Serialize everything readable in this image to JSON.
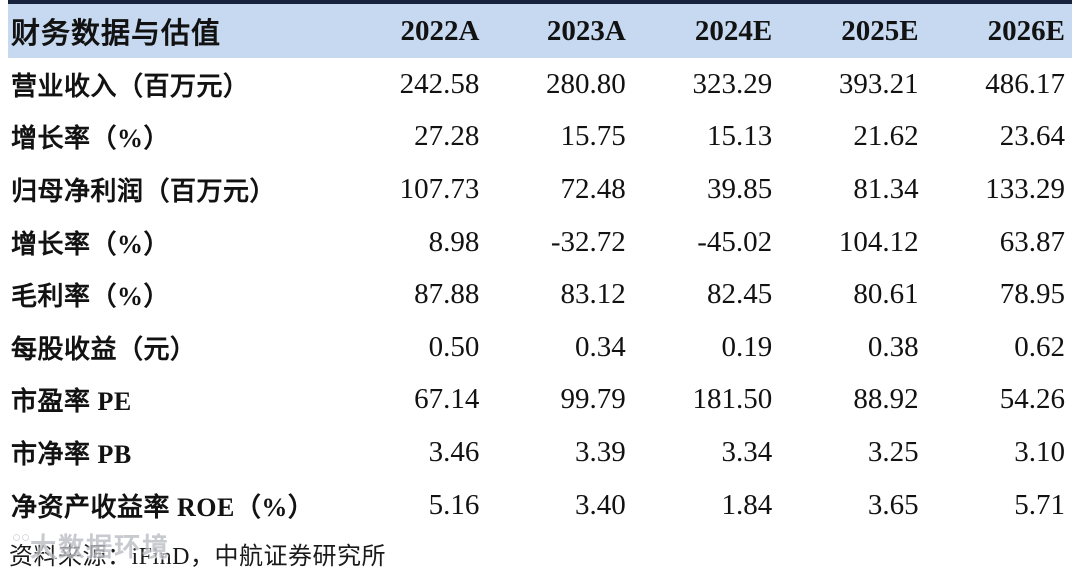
{
  "table": {
    "title": "财务数据与估值",
    "columns": [
      "2022A",
      "2023A",
      "2024E",
      "2025E",
      "2026E"
    ],
    "rows": [
      {
        "label": "营业收入（百万元）",
        "values": [
          "242.58",
          "280.80",
          "323.29",
          "393.21",
          "486.17"
        ]
      },
      {
        "label": "增长率（%）",
        "values": [
          "27.28",
          "15.75",
          "15.13",
          "21.62",
          "23.64"
        ]
      },
      {
        "label": "归母净利润（百万元）",
        "values": [
          "107.73",
          "72.48",
          "39.85",
          "81.34",
          "133.29"
        ]
      },
      {
        "label": "增长率（%）",
        "values": [
          "8.98",
          "-32.72",
          "-45.02",
          "104.12",
          "63.87"
        ]
      },
      {
        "label": "毛利率（%）",
        "values": [
          "87.88",
          "83.12",
          "82.45",
          "80.61",
          "78.95"
        ]
      },
      {
        "label": "每股收益（元）",
        "values": [
          "0.50",
          "0.34",
          "0.19",
          "0.38",
          "0.62"
        ]
      },
      {
        "label": "市盈率 PE",
        "values": [
          "67.14",
          "99.79",
          "181.50",
          "88.92",
          "54.26"
        ]
      },
      {
        "label": "市净率 PB",
        "values": [
          "3.46",
          "3.39",
          "3.34",
          "3.25",
          "3.10"
        ]
      },
      {
        "label": "净资产收益率 ROE（%）",
        "values": [
          "5.16",
          "3.40",
          "1.84",
          "3.65",
          "5.71"
        ]
      }
    ]
  },
  "footer": {
    "source": "资料来源：iFinD，中航证券研究所"
  },
  "watermark": {
    "logo": "○○",
    "text": "大数据环境"
  },
  "colors": {
    "header_bg": "#c6d9f0",
    "top_border": "#17233d",
    "text": "#121212",
    "watermark": "#b9bcc2"
  }
}
